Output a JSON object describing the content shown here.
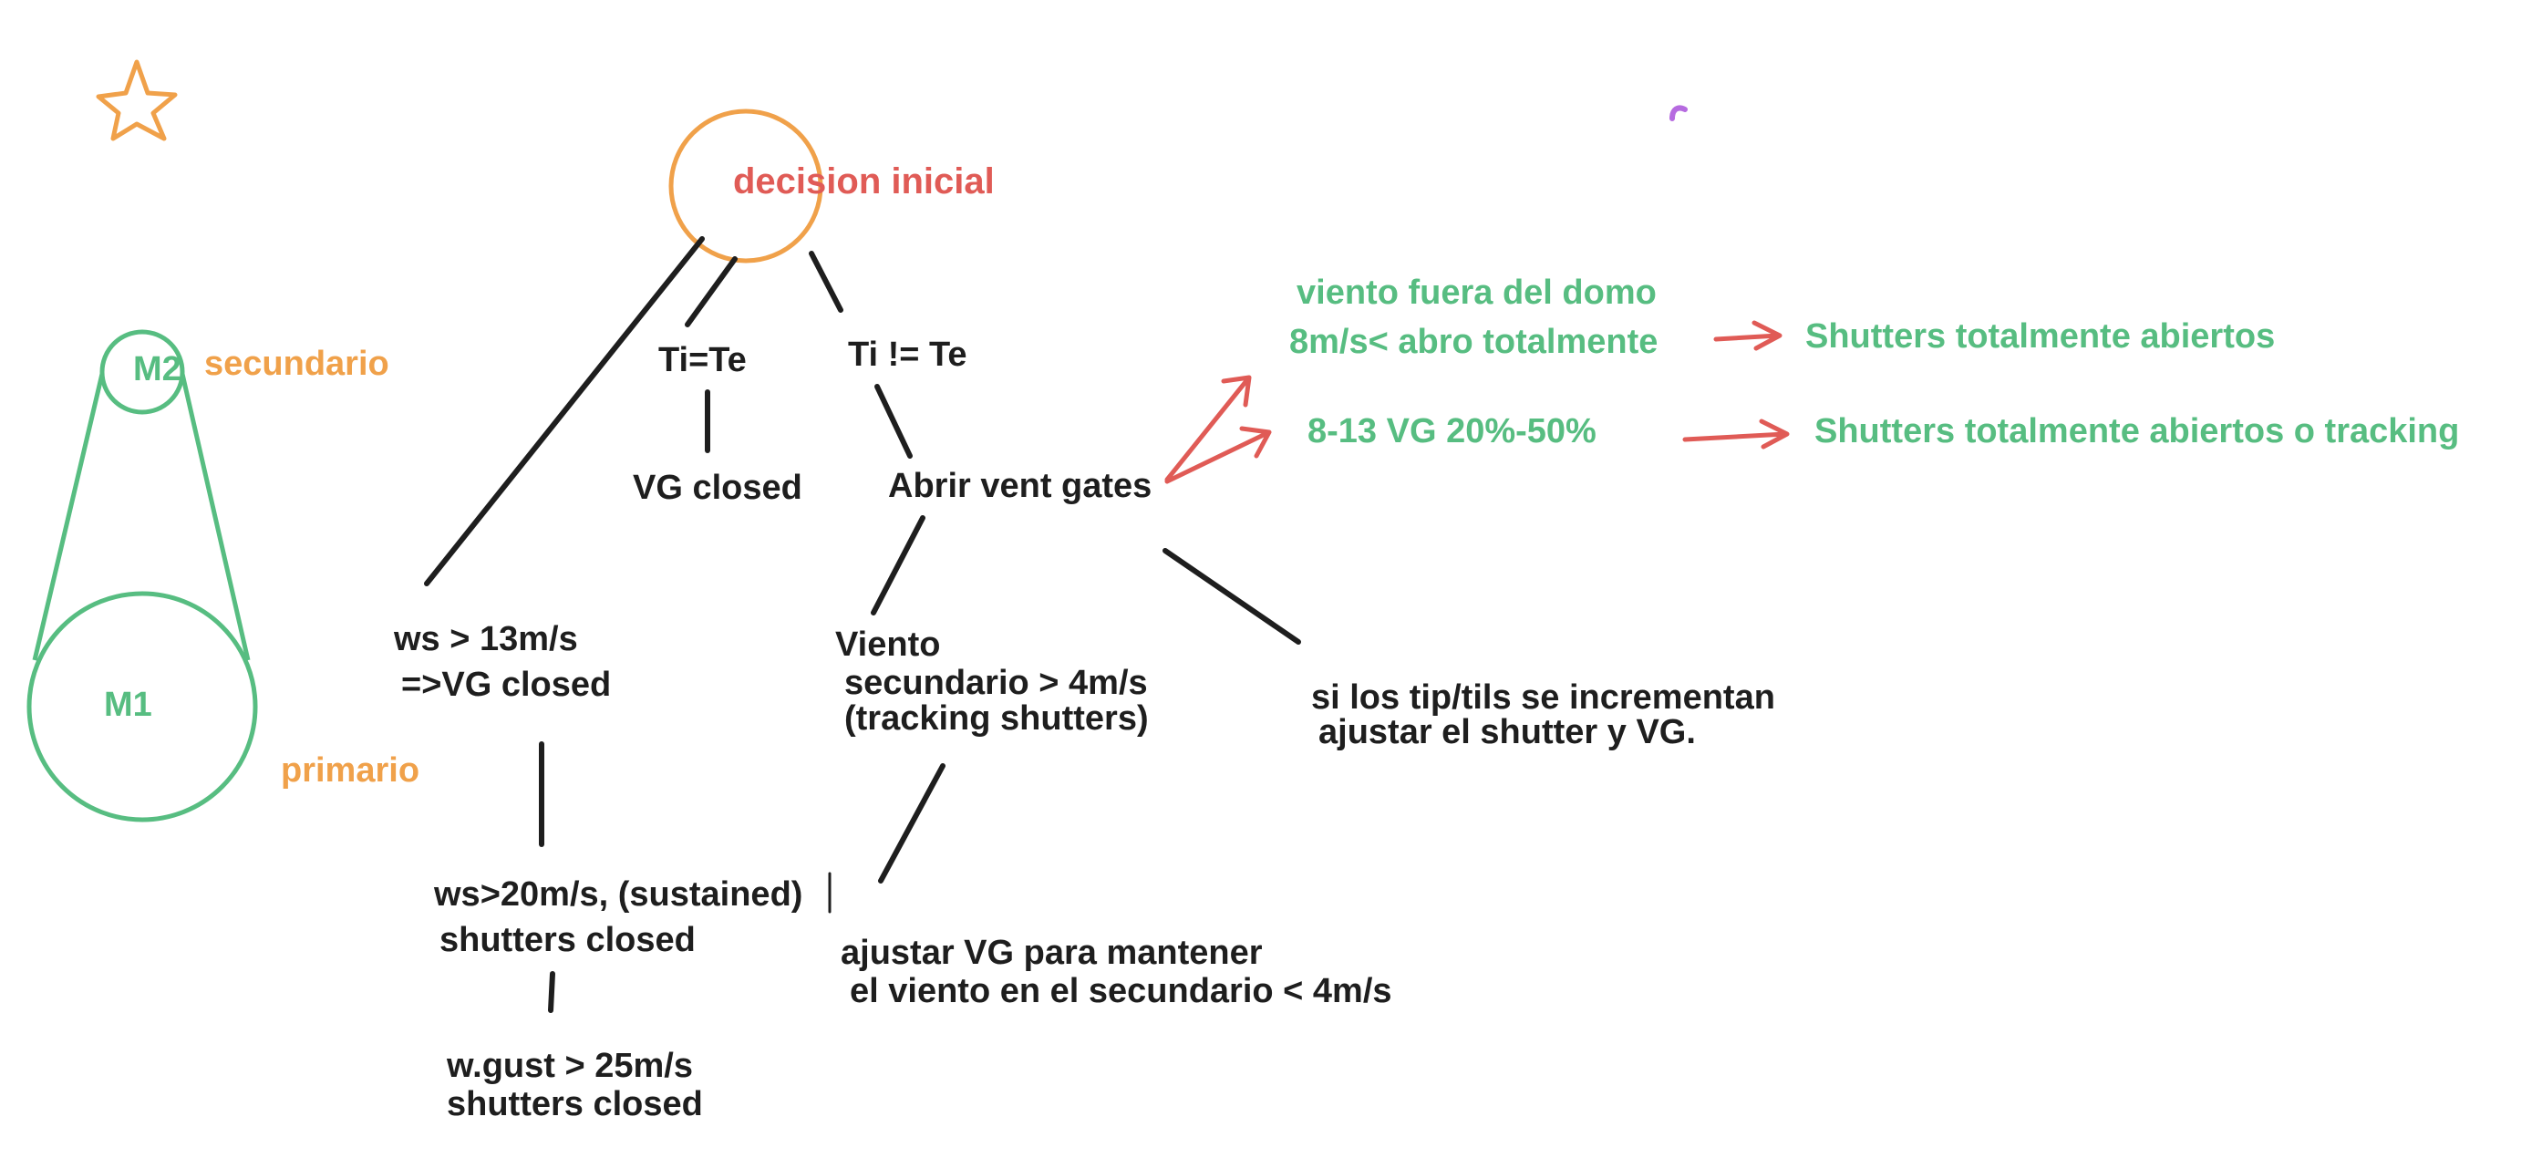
{
  "colors": {
    "ink": "#1e1e1e",
    "green": "#57bd81",
    "orange": "#f0a14a",
    "red": "#e05b56",
    "purple": "#b66be0"
  },
  "icons": [
    "star-icon"
  ],
  "telescope": {
    "m2_label": "M2",
    "m1_label": "M1",
    "secondary_label": "secundario",
    "primary_label": "primario"
  },
  "root": {
    "label": "decision inicial"
  },
  "nodes": {
    "ti_eq_te": "Ti=Te",
    "vg_closed": "VG closed",
    "ti_neq_te": "Ti  != Te",
    "abrir": "Abrir vent gates",
    "ws13_line1": "ws > 13m/s",
    "ws13_line2": "=>VG closed",
    "ws20_line1": "ws>20m/s, (sustained)",
    "ws20_line2": "shutters closed",
    "gust_line1": "w.gust > 25m/s",
    "gust_line2": "shutters closed",
    "viento_line1": "Viento",
    "viento_line2": "secundario > 4m/s",
    "viento_line3": "(tracking shutters)",
    "ajustar_line1": "ajustar VG para mantener",
    "ajustar_line2": "el viento en el secundario < 4m/s",
    "tip_line1": "si los tip/tils se incrementan",
    "tip_line2": "ajustar el shutter y VG."
  },
  "green_notes": {
    "outside_line1": "viento fuera del domo",
    "outside_line2": "8m/s< abro totalmente",
    "outside_result": "Shutters totalmente abiertos",
    "mid_range": "8-13   VG 20%-50%",
    "mid_result": "Shutters totalmente abiertos o tracking"
  }
}
